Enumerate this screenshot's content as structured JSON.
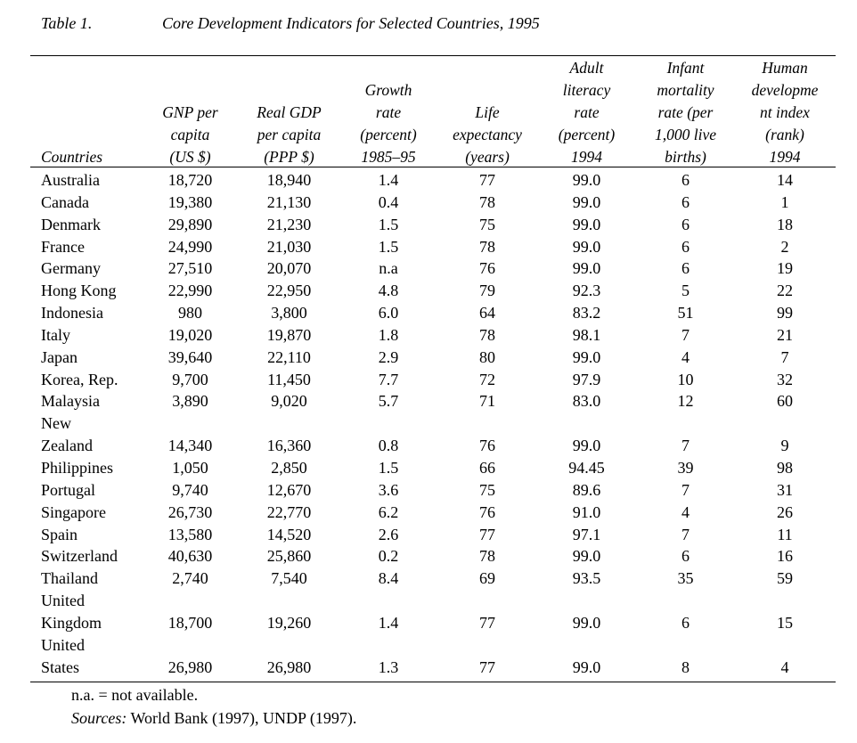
{
  "caption": {
    "table_number": "Table 1.",
    "title": "Core Development Indicators for Selected Countries, 1995"
  },
  "headers": [
    {
      "key": "country",
      "lines": [
        "Countries"
      ]
    },
    {
      "key": "gnp",
      "lines": [
        "GNP per",
        "capita",
        "(US $)"
      ]
    },
    {
      "key": "gdp",
      "lines": [
        "Real GDP",
        "per capita",
        "(PPP $)"
      ]
    },
    {
      "key": "growth",
      "lines": [
        "Growth",
        "rate",
        "(percent)",
        "1985–95"
      ]
    },
    {
      "key": "life",
      "lines": [
        "Life",
        "expectancy",
        "(years)"
      ]
    },
    {
      "key": "literacy",
      "lines": [
        "Adult",
        "literacy",
        "rate",
        "(percent)",
        "1994"
      ]
    },
    {
      "key": "infant",
      "lines": [
        "Infant",
        "mortality",
        "rate (per",
        "1,000 live",
        "births)"
      ]
    },
    {
      "key": "hdi",
      "lines": [
        "Human",
        "developme",
        "nt index",
        "(rank)",
        "1994"
      ]
    }
  ],
  "rows": [
    {
      "country": [
        "Australia"
      ],
      "gnp": "18,720",
      "gdp": "18,940",
      "growth": "1.4",
      "life": "77",
      "literacy": "99.0",
      "infant": "6",
      "hdi": "14"
    },
    {
      "country": [
        "Canada"
      ],
      "gnp": "19,380",
      "gdp": "21,130",
      "growth": "0.4",
      "life": "78",
      "literacy": "99.0",
      "infant": "6",
      "hdi": "1"
    },
    {
      "country": [
        "Denmark"
      ],
      "gnp": "29,890",
      "gdp": "21,230",
      "growth": "1.5",
      "life": "75",
      "literacy": "99.0",
      "infant": "6",
      "hdi": "18"
    },
    {
      "country": [
        "France"
      ],
      "gnp": "24,990",
      "gdp": "21,030",
      "growth": "1.5",
      "life": "78",
      "literacy": "99.0",
      "infant": "6",
      "hdi": "2"
    },
    {
      "country": [
        "Germany"
      ],
      "gnp": "27,510",
      "gdp": "20,070",
      "growth": "n.a",
      "life": "76",
      "literacy": "99.0",
      "infant": "6",
      "hdi": "19"
    },
    {
      "country": [
        "Hong Kong"
      ],
      "gnp": "22,990",
      "gdp": "22,950",
      "growth": "4.8",
      "life": "79",
      "literacy": "92.3",
      "infant": "5",
      "hdi": "22"
    },
    {
      "country": [
        "Indonesia"
      ],
      "gnp": "980",
      "gdp": "3,800",
      "growth": "6.0",
      "life": "64",
      "literacy": "83.2",
      "infant": "51",
      "hdi": "99"
    },
    {
      "country": [
        "Italy"
      ],
      "gnp": "19,020",
      "gdp": "19,870",
      "growth": "1.8",
      "life": "78",
      "literacy": "98.1",
      "infant": "7",
      "hdi": "21"
    },
    {
      "country": [
        "Japan"
      ],
      "gnp": "39,640",
      "gdp": "22,110",
      "growth": "2.9",
      "life": "80",
      "literacy": "99.0",
      "infant": "4",
      "hdi": "7"
    },
    {
      "country": [
        "Korea, Rep."
      ],
      "gnp": "9,700",
      "gdp": "11,450",
      "growth": "7.7",
      "life": "72",
      "literacy": "97.9",
      "infant": "10",
      "hdi": "32"
    },
    {
      "country": [
        "Malaysia"
      ],
      "gnp": "3,890",
      "gdp": "9,020",
      "growth": "5.7",
      "life": "71",
      "literacy": "83.0",
      "infant": "12",
      "hdi": "60"
    },
    {
      "country": [
        "New",
        "Zealand"
      ],
      "gnp": "14,340",
      "gdp": "16,360",
      "growth": "0.8",
      "life": "76",
      "literacy": "99.0",
      "infant": "7",
      "hdi": "9"
    },
    {
      "country": [
        "Philippines"
      ],
      "gnp": "1,050",
      "gdp": "2,850",
      "growth": "1.5",
      "life": "66",
      "literacy": "94.45",
      "infant": "39",
      "hdi": "98"
    },
    {
      "country": [
        "Portugal"
      ],
      "gnp": "9,740",
      "gdp": "12,670",
      "growth": "3.6",
      "life": "75",
      "literacy": "89.6",
      "infant": "7",
      "hdi": "31"
    },
    {
      "country": [
        "Singapore"
      ],
      "gnp": "26,730",
      "gdp": "22,770",
      "growth": "6.2",
      "life": "76",
      "literacy": "91.0",
      "infant": "4",
      "hdi": "26"
    },
    {
      "country": [
        "Spain"
      ],
      "gnp": "13,580",
      "gdp": "14,520",
      "growth": "2.6",
      "life": "77",
      "literacy": "97.1",
      "infant": "7",
      "hdi": "11"
    },
    {
      "country": [
        "Switzerland"
      ],
      "gnp": "40,630",
      "gdp": "25,860",
      "growth": "0.2",
      "life": "78",
      "literacy": "99.0",
      "infant": "6",
      "hdi": "16"
    },
    {
      "country": [
        "Thailand"
      ],
      "gnp": "2,740",
      "gdp": "7,540",
      "growth": "8.4",
      "life": "69",
      "literacy": "93.5",
      "infant": "35",
      "hdi": "59"
    },
    {
      "country": [
        "United",
        "Kingdom"
      ],
      "gnp": "18,700",
      "gdp": "19,260",
      "growth": "1.4",
      "life": "77",
      "literacy": "99.0",
      "infant": "6",
      "hdi": "15"
    },
    {
      "country": [
        "United",
        "States"
      ],
      "gnp": "26,980",
      "gdp": "26,980",
      "growth": "1.3",
      "life": "77",
      "literacy": "99.0",
      "infant": "8",
      "hdi": "4"
    }
  ],
  "notes": {
    "na_note": "n.a. = not available.",
    "sources_label": "Sources:",
    "sources_text": " World Bank (1997), UNDP (1997)."
  }
}
